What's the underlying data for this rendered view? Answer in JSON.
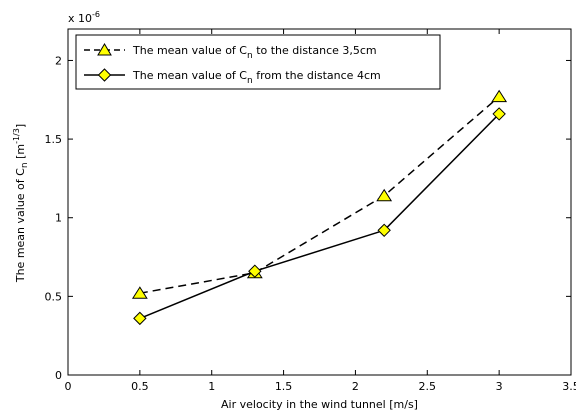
{
  "chart_data": {
    "type": "line",
    "xlabel": "Air velocity in the wind tunnel [m/s]",
    "ylabel": {
      "prefix": "The mean value of C",
      "sub": "n",
      "mid": " [m",
      "sup": "-1/3",
      "suffix": "]"
    },
    "exponent": {
      "base": "x 10",
      "power": "-6"
    },
    "xlim": [
      0,
      3.5
    ],
    "ylim": [
      0,
      2.2
    ],
    "xticks": [
      0,
      0.5,
      1,
      1.5,
      2,
      2.5,
      3,
      3.5
    ],
    "xtick_labels": [
      "0",
      "0.5",
      "1",
      "1.5",
      "2",
      "2.5",
      "3",
      "3.5"
    ],
    "yticks": [
      0,
      0.5,
      1,
      1.5,
      2
    ],
    "ytick_labels": [
      "0",
      "0.5",
      "1",
      "1.5",
      "2"
    ],
    "grid": false,
    "legend_position": "top-left",
    "series": [
      {
        "legend": {
          "prefix": "The mean value of C",
          "sub": "n",
          "suffix": " to the distance 3,5cm"
        },
        "marker": "triangle",
        "linestyle": "dashed",
        "x": [
          0.5,
          1.3,
          2.2,
          3.0
        ],
        "y": [
          0.52,
          0.65,
          1.14,
          1.77
        ]
      },
      {
        "legend": {
          "prefix": "The mean value of C",
          "sub": "n",
          "suffix": " from the distance 4cm"
        },
        "marker": "diamond",
        "linestyle": "solid",
        "x": [
          0.5,
          1.3,
          2.2,
          3.0
        ],
        "y": [
          0.36,
          0.66,
          0.92,
          1.66
        ]
      }
    ],
    "colors": {
      "line": "#000000",
      "marker_fill": "#ffff00",
      "background": "#ffffff"
    }
  }
}
